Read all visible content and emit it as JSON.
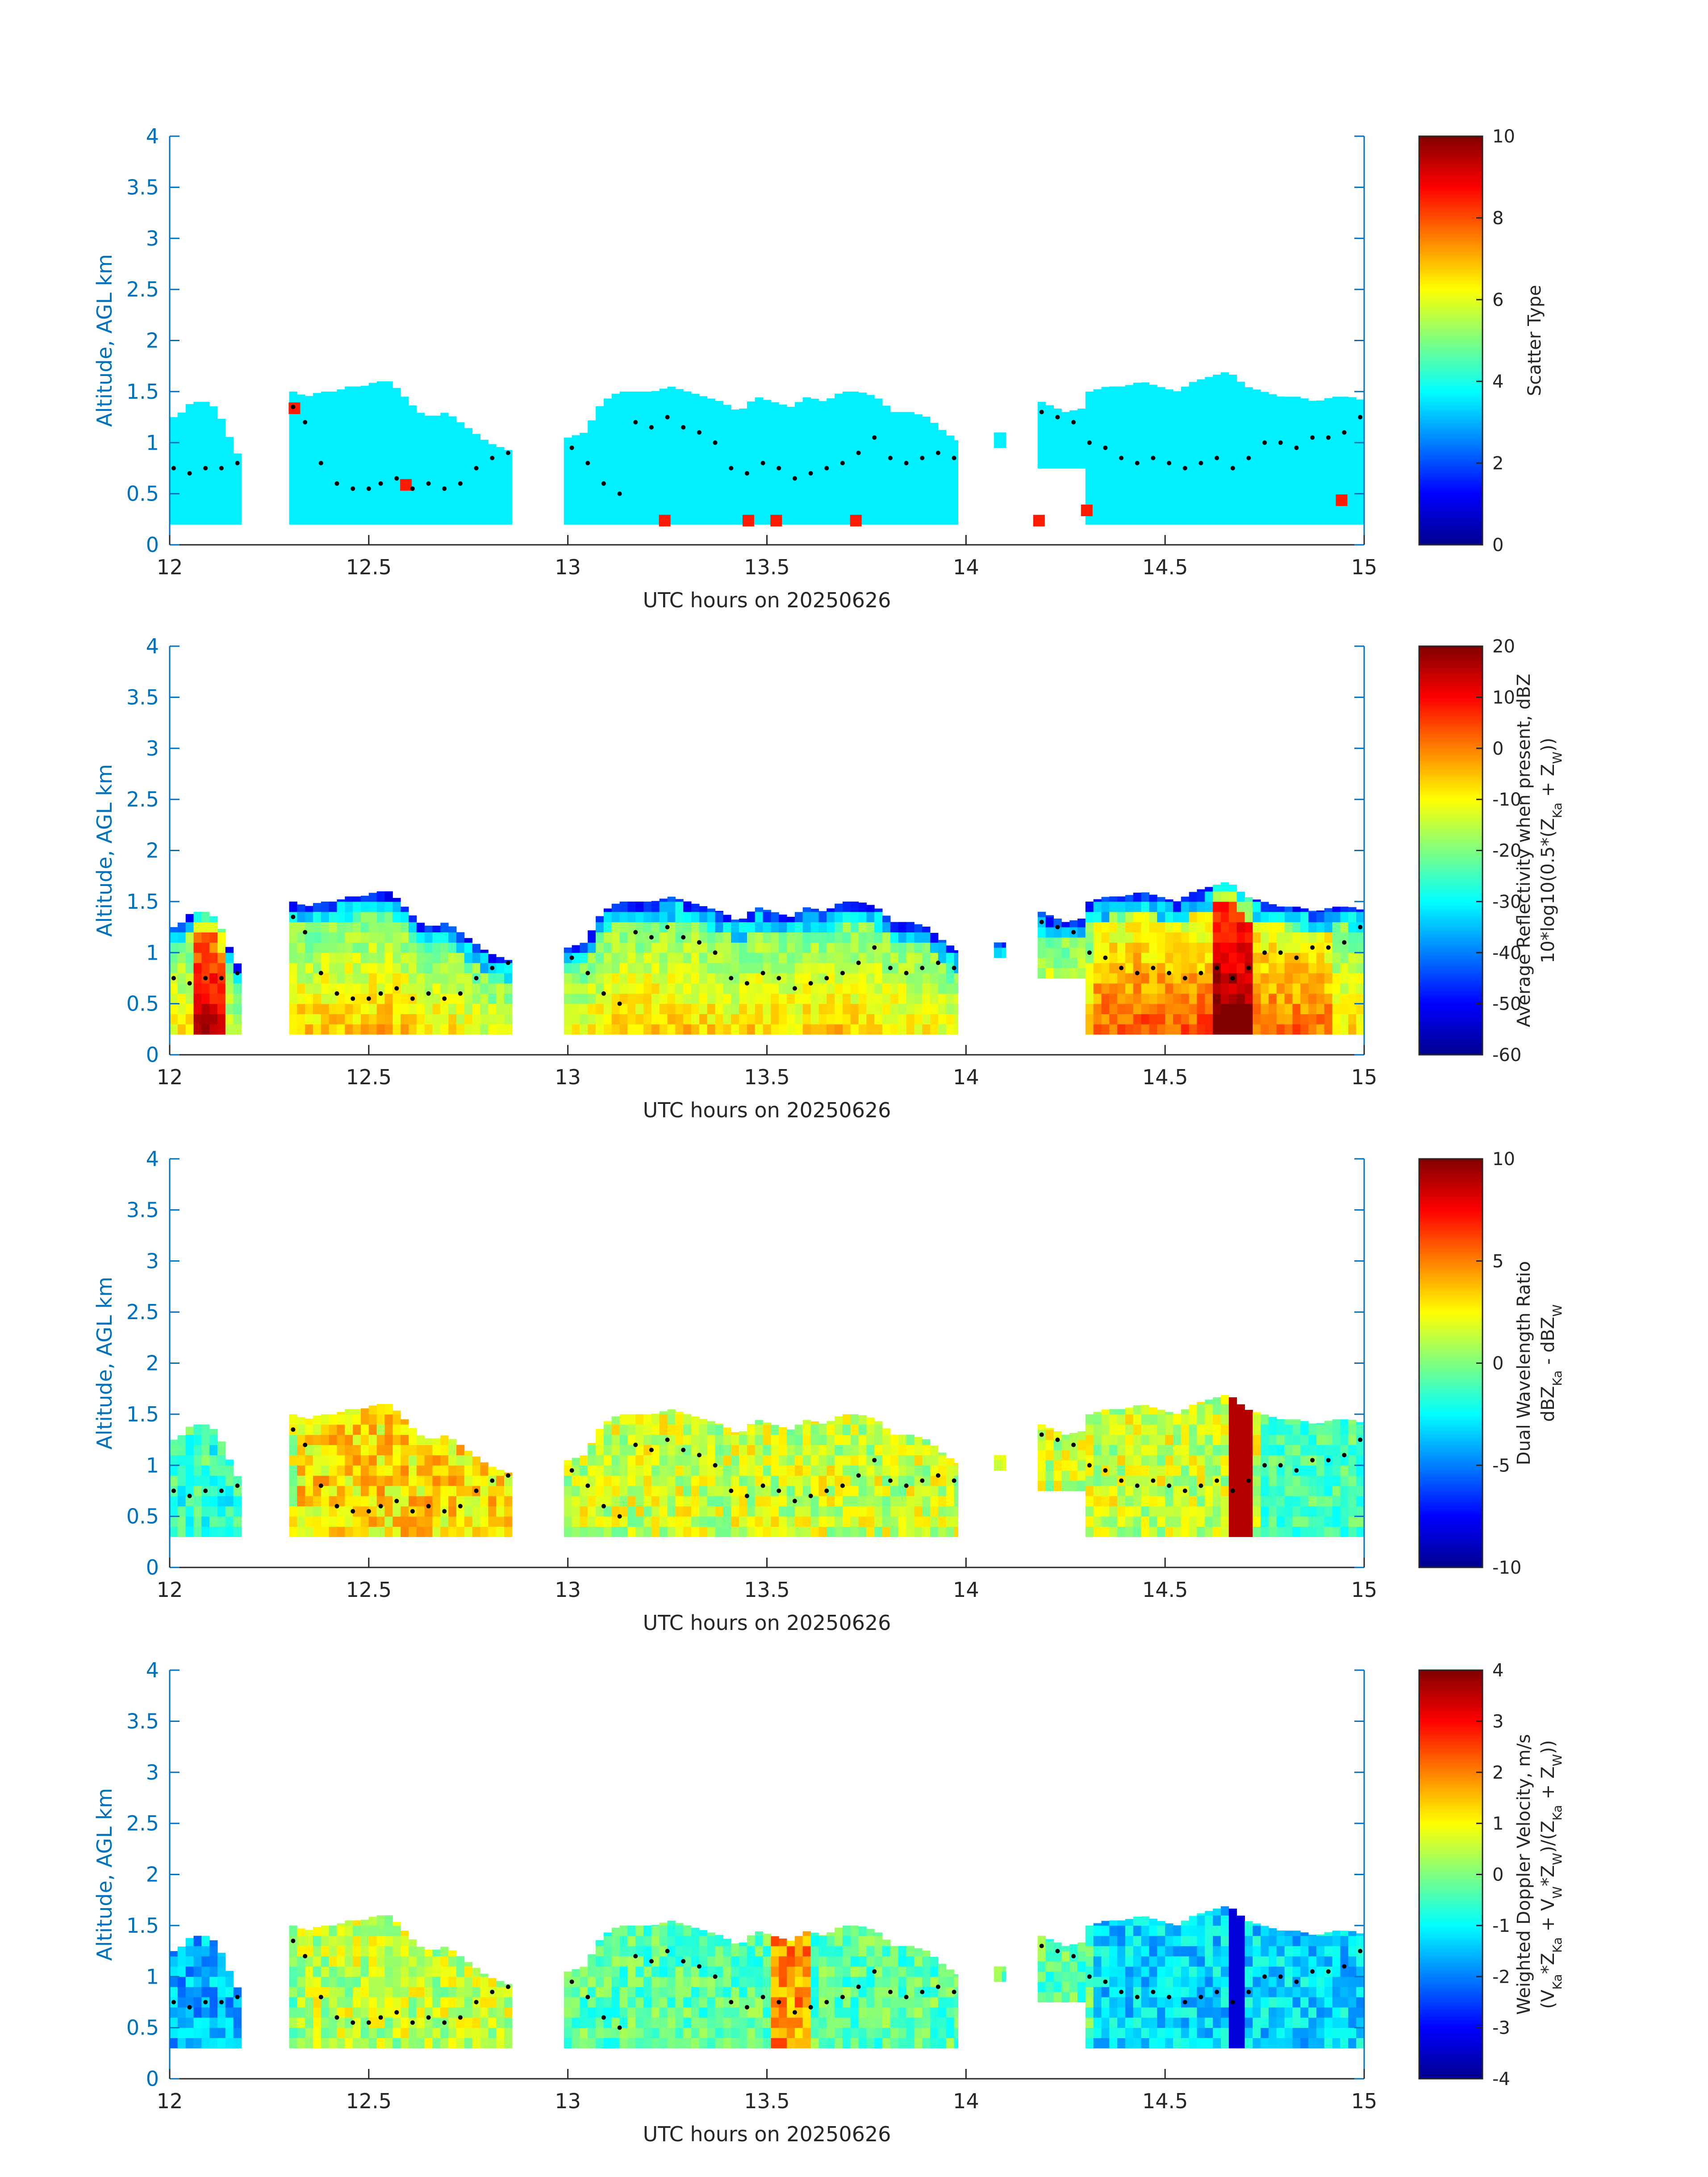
{
  "chart_data": [
    {
      "type": "heatmap",
      "title": "",
      "xlabel": "UTC hours on 20250626",
      "ylabel": "Altitude, AGL km",
      "xlim": [
        12,
        15
      ],
      "ylim": [
        0,
        4
      ],
      "xticks": [
        "12",
        "12.5",
        "13",
        "13.5",
        "14",
        "14.5",
        "15"
      ],
      "yticks": [
        "0",
        "0.5",
        "1",
        "1.5",
        "2",
        "2.5",
        "3",
        "3.5",
        "4"
      ],
      "colorbar": {
        "label_lines": [
          "Scatter Type"
        ],
        "clim": [
          0,
          10
        ],
        "ticks": [
          "0",
          "2",
          "4",
          "6",
          "8",
          "10"
        ]
      },
      "field": "scatter_type",
      "dominant_value": 3.6
    },
    {
      "type": "heatmap",
      "title": "",
      "xlabel": "UTC hours on 20250626",
      "ylabel": "Altitude, AGL km",
      "xlim": [
        12,
        15
      ],
      "ylim": [
        0,
        4
      ],
      "xticks": [
        "12",
        "12.5",
        "13",
        "13.5",
        "14",
        "14.5",
        "15"
      ],
      "yticks": [
        "0",
        "0.5",
        "1",
        "1.5",
        "2",
        "2.5",
        "3",
        "3.5",
        "4"
      ],
      "colorbar": {
        "label_lines": [
          "Average Reflectivity when present, dBZ",
          "10*log10(0.5*(Z",
          "Ka",
          " + Z",
          "W",
          "))"
        ],
        "clim": [
          -60,
          20
        ],
        "ticks": [
          "-60",
          "-50",
          "-40",
          "-30",
          "-20",
          "-10",
          "0",
          "10",
          "20"
        ]
      },
      "field": "reflectivity"
    },
    {
      "type": "heatmap",
      "title": "",
      "xlabel": "UTC hours on 20250626",
      "ylabel": "Altitude, AGL km",
      "xlim": [
        12,
        15
      ],
      "ylim": [
        0,
        4
      ],
      "xticks": [
        "12",
        "12.5",
        "13",
        "13.5",
        "14",
        "14.5",
        "15"
      ],
      "yticks": [
        "0",
        "0.5",
        "1",
        "1.5",
        "2",
        "2.5",
        "3",
        "3.5",
        "4"
      ],
      "colorbar": {
        "label_lines": [
          "Dual Wavelength Ratio",
          "dBZ",
          "Ka",
          " - dBZ",
          "W"
        ],
        "clim": [
          -10,
          10
        ],
        "ticks": [
          "-10",
          "-5",
          "0",
          "5",
          "10"
        ]
      },
      "field": "dwr"
    },
    {
      "type": "heatmap",
      "title": "",
      "xlabel": "UTC hours on 20250626",
      "ylabel": "Altitude, AGL km",
      "xlim": [
        12,
        15
      ],
      "ylim": [
        0,
        4
      ],
      "xticks": [
        "12",
        "12.5",
        "13",
        "13.5",
        "14",
        "14.5",
        "15"
      ],
      "yticks": [
        "0",
        "0.5",
        "1",
        "1.5",
        "2",
        "2.5",
        "3",
        "3.5",
        "4"
      ],
      "colorbar": {
        "label_lines": [
          "Weighted Doppler Velocity, m/s",
          "(V",
          "Ka",
          "*Z",
          "Ka",
          " + V",
          "W",
          "*Z",
          "W",
          ")/(Z",
          "Ka",
          " + Z",
          "W",
          "))"
        ],
        "clim": [
          -4,
          4
        ],
        "ticks": [
          "-4",
          "-3",
          "-2",
          "-1",
          "0",
          "1",
          "2",
          "3",
          "4"
        ]
      },
      "field": "velocity"
    }
  ],
  "colormap": "jet",
  "shared": {
    "cloud_extent_km": {
      "segments": [
        {
          "x0": 12.0,
          "x1": 12.18,
          "base": 0.2,
          "top": [
            1.25,
            1.3,
            1.4,
            1.4,
            1.4,
            1.3,
            1.1,
            0.9,
            0.85
          ]
        },
        {
          "x0": 12.3,
          "x1": 12.86,
          "base": 0.2,
          "top": [
            1.5,
            1.45,
            1.5,
            1.5,
            1.55,
            1.55,
            1.6,
            1.6,
            1.45,
            1.3,
            1.25,
            1.3,
            1.2,
            1.1,
            1.0,
            0.95,
            0.9
          ]
        },
        {
          "x0": 12.99,
          "x1": 13.98,
          "base": 0.2,
          "top": [
            1.05,
            1.1,
            1.4,
            1.5,
            1.5,
            1.5,
            1.55,
            1.5,
            1.45,
            1.4,
            1.3,
            1.45,
            1.4,
            1.35,
            1.45,
            1.4,
            1.5,
            1.5,
            1.45,
            1.3,
            1.3,
            1.25,
            1.1,
            1.0
          ]
        },
        {
          "x0": 14.07,
          "x1": 14.1,
          "base": 0.95,
          "top": [
            1.1
          ]
        },
        {
          "x0": 14.18,
          "x1": 14.3,
          "base": 0.75,
          "top": [
            1.4,
            1.3,
            1.35
          ]
        },
        {
          "x0": 14.3,
          "x1": 15.0,
          "base": 0.2,
          "top": [
            1.5,
            1.55,
            1.55,
            1.6,
            1.55,
            1.5,
            1.6,
            1.65,
            1.7,
            1.55,
            1.5,
            1.45,
            1.45,
            1.4,
            1.45,
            1.45,
            1.4
          ]
        }
      ]
    },
    "dotted_line_km": {
      "x": [
        12.01,
        12.05,
        12.09,
        12.13,
        12.17,
        12.31,
        12.34,
        12.38,
        12.42,
        12.46,
        12.5,
        12.53,
        12.57,
        12.61,
        12.65,
        12.69,
        12.73,
        12.77,
        12.81,
        12.85,
        13.01,
        13.05,
        13.09,
        13.13,
        13.17,
        13.21,
        13.25,
        13.29,
        13.33,
        13.37,
        13.41,
        13.45,
        13.49,
        13.53,
        13.57,
        13.61,
        13.65,
        13.69,
        13.73,
        13.77,
        13.81,
        13.85,
        13.89,
        13.93,
        13.97,
        14.19,
        14.23,
        14.27,
        14.31,
        14.35,
        14.39,
        14.43,
        14.47,
        14.51,
        14.55,
        14.59,
        14.63,
        14.67,
        14.71,
        14.75,
        14.79,
        14.83,
        14.87,
        14.91,
        14.95,
        14.99
      ],
      "y": [
        0.75,
        0.7,
        0.75,
        0.75,
        0.8,
        1.35,
        1.2,
        0.8,
        0.6,
        0.55,
        0.55,
        0.6,
        0.65,
        0.55,
        0.6,
        0.55,
        0.6,
        0.75,
        0.85,
        0.9,
        0.95,
        0.8,
        0.6,
        0.5,
        1.2,
        1.15,
        1.25,
        1.15,
        1.1,
        1.0,
        0.75,
        0.7,
        0.8,
        0.75,
        0.65,
        0.7,
        0.75,
        0.8,
        0.9,
        1.05,
        0.85,
        0.8,
        0.85,
        0.9,
        0.85,
        1.3,
        1.25,
        1.2,
        1.0,
        0.95,
        0.85,
        0.8,
        0.85,
        0.8,
        0.75,
        0.8,
        0.85,
        0.75,
        0.85,
        1.0,
        1.0,
        0.95,
        1.05,
        1.05,
        1.1,
        1.25
      ]
    },
    "scatter_type_outliers": [
      {
        "x": 12.31,
        "y": 1.35,
        "value": 8.5
      },
      {
        "x": 12.59,
        "y": 0.6,
        "value": 8.5
      },
      {
        "x": 13.24,
        "y": 0.25,
        "value": 8.5
      },
      {
        "x": 13.45,
        "y": 0.25,
        "value": 8.5
      },
      {
        "x": 13.52,
        "y": 0.25,
        "value": 8.5
      },
      {
        "x": 13.72,
        "y": 0.25,
        "value": 8.5
      },
      {
        "x": 14.18,
        "y": 0.25,
        "value": 8.5
      },
      {
        "x": 14.3,
        "y": 0.35,
        "value": 8.5
      },
      {
        "x": 14.94,
        "y": 0.45,
        "value": 8.5
      }
    ]
  }
}
